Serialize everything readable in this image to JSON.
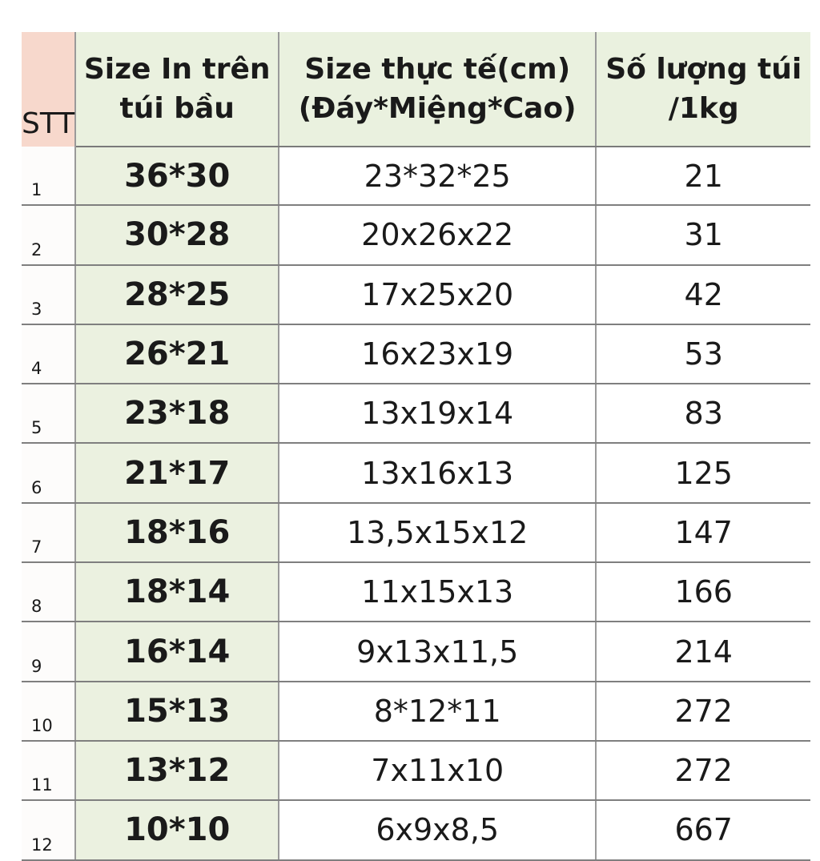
{
  "header": {
    "stt": "STT",
    "print_size_line1": "Size In trên",
    "print_size_line2": "túi bầu",
    "real_size_line1": "Size thực tế(cm)",
    "real_size_line2": "(Đáy*Miệng*Cao)",
    "qty_line1": "Số lượng túi",
    "qty_line2": "/1kg"
  },
  "rows": [
    {
      "stt": "1",
      "print_size": "36*30",
      "real_size": "23*32*25",
      "qty": "21"
    },
    {
      "stt": "2",
      "print_size": "30*28",
      "real_size": "20x26x22",
      "qty": "31"
    },
    {
      "stt": "3",
      "print_size": "28*25",
      "real_size": "17x25x20",
      "qty": "42"
    },
    {
      "stt": "4",
      "print_size": "26*21",
      "real_size": "16x23x19",
      "qty": "53"
    },
    {
      "stt": "5",
      "print_size": "23*18",
      "real_size": "13x19x14",
      "qty": "83"
    },
    {
      "stt": "6",
      "print_size": "21*17",
      "real_size": "13x16x13",
      "qty": "125"
    },
    {
      "stt": "7",
      "print_size": "18*16",
      "real_size": "13,5x15x12",
      "qty": "147"
    },
    {
      "stt": "8",
      "print_size": "18*14",
      "real_size": "11x15x13",
      "qty": "166"
    },
    {
      "stt": "9",
      "print_size": "16*14",
      "real_size": "9x13x11,5",
      "qty": "214"
    },
    {
      "stt": "10",
      "print_size": "15*13",
      "real_size": "8*12*11",
      "qty": "272"
    },
    {
      "stt": "11",
      "print_size": "13*12",
      "real_size": "7x11x10",
      "qty": "272"
    },
    {
      "stt": "12",
      "print_size": "10*10",
      "real_size": "6x9x8,5",
      "qty": "667"
    }
  ]
}
